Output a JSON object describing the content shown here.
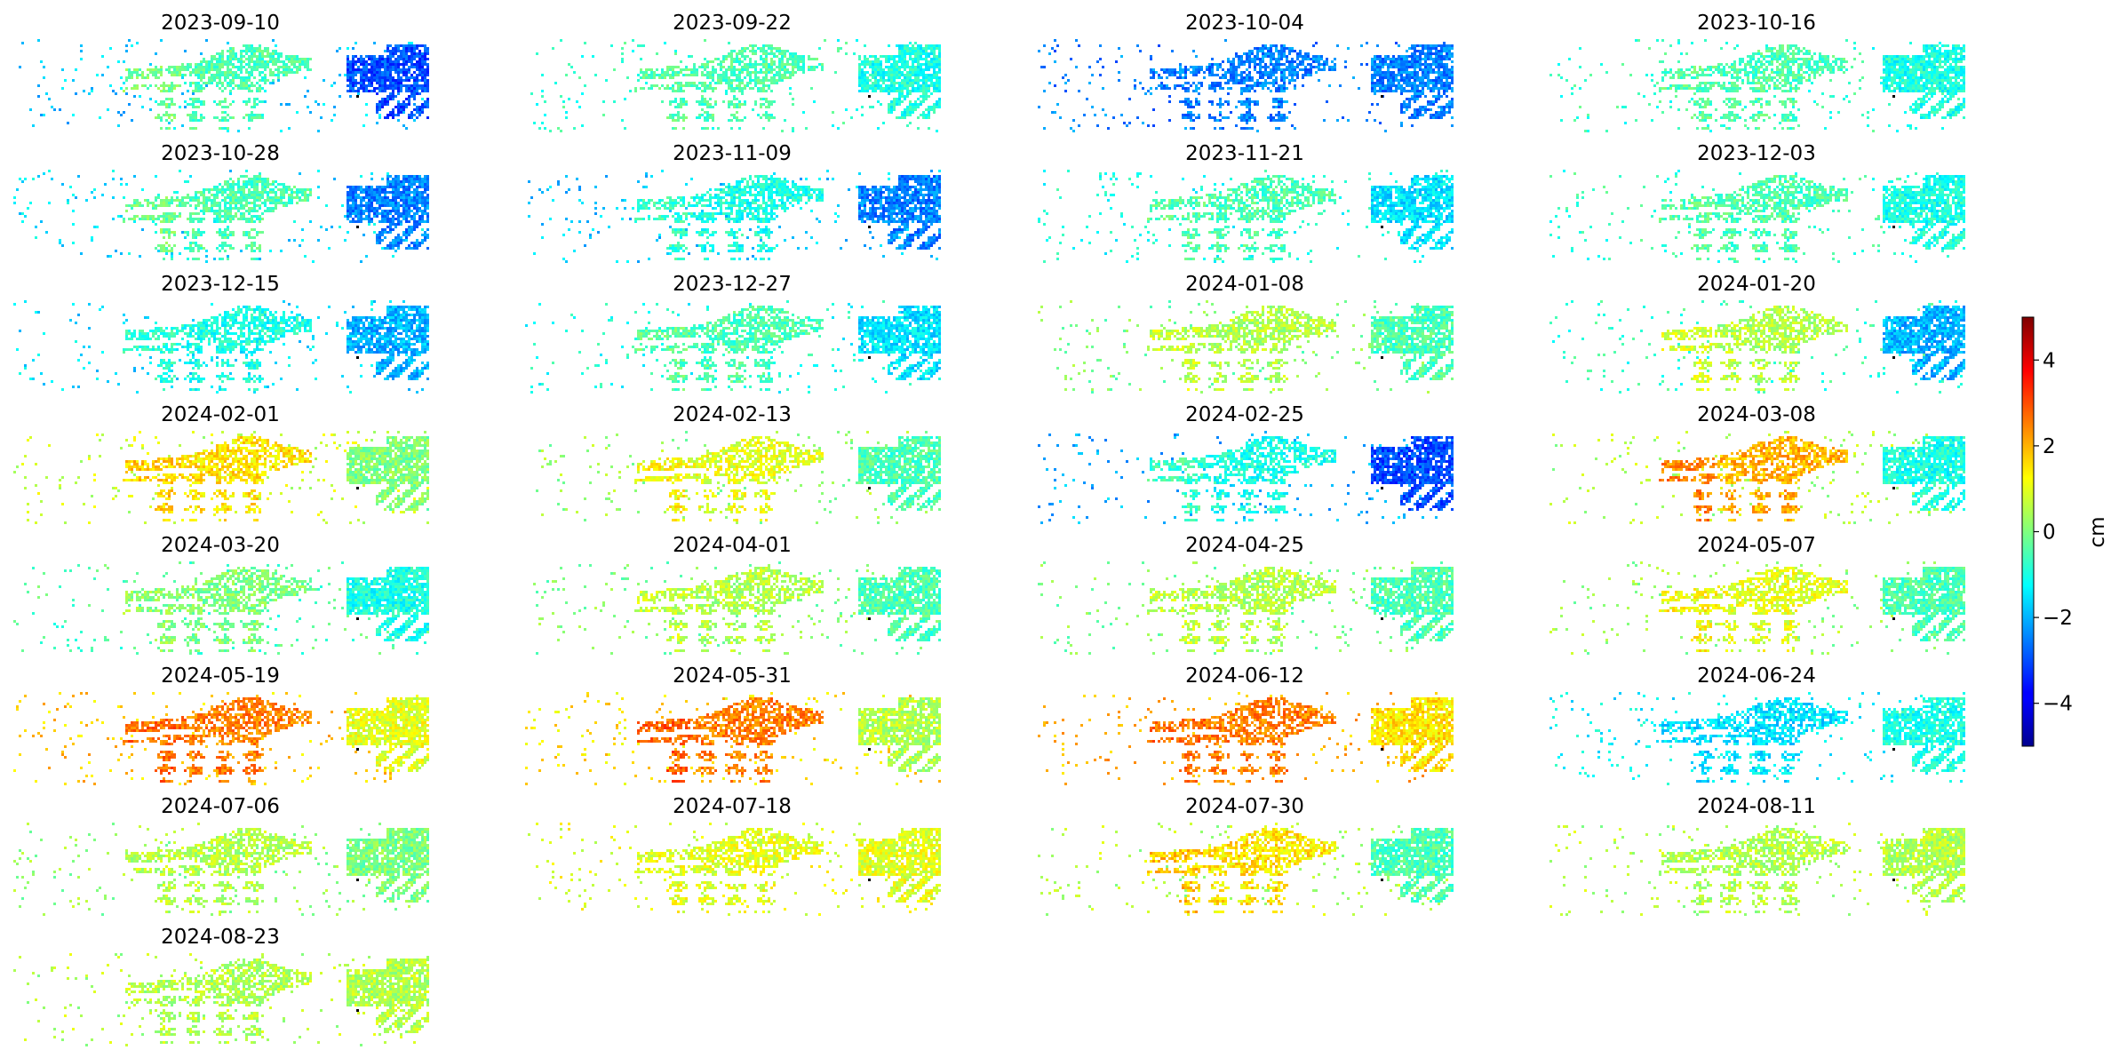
{
  "chart_data": {
    "type": "heatmap",
    "title": "",
    "panels": [
      {
        "date": "2023-09-10",
        "west": -0.5,
        "east": -3.0
      },
      {
        "date": "2023-09-22",
        "west": -0.5,
        "east": -1.0
      },
      {
        "date": "2023-10-04",
        "west": -2.5,
        "east": -2.5
      },
      {
        "date": "2023-10-16",
        "west": -0.5,
        "east": -1.0
      },
      {
        "date": "2023-10-28",
        "west": -0.5,
        "east": -2.5
      },
      {
        "date": "2023-11-09",
        "west": -1.0,
        "east": -2.5
      },
      {
        "date": "2023-11-21",
        "west": -0.5,
        "east": -1.5
      },
      {
        "date": "2023-12-03",
        "west": -0.5,
        "east": -1.0
      },
      {
        "date": "2023-12-15",
        "west": -1.0,
        "east": -2.0
      },
      {
        "date": "2023-12-27",
        "west": -0.5,
        "east": -1.5
      },
      {
        "date": "2024-01-08",
        "west": 0.5,
        "east": -0.5
      },
      {
        "date": "2024-01-20",
        "west": 0.5,
        "east": -2.0
      },
      {
        "date": "2024-02-01",
        "west": 1.5,
        "east": 0.0
      },
      {
        "date": "2024-02-13",
        "west": 1.0,
        "east": -0.5
      },
      {
        "date": "2024-02-25",
        "west": -1.0,
        "east": -3.0
      },
      {
        "date": "2024-03-08",
        "west": 2.0,
        "east": -1.0
      },
      {
        "date": "2024-03-20",
        "west": 0.0,
        "east": -1.0
      },
      {
        "date": "2024-04-01",
        "west": 0.5,
        "east": -0.5
      },
      {
        "date": "2024-04-25",
        "west": 0.5,
        "east": -0.5
      },
      {
        "date": "2024-05-07",
        "west": 1.0,
        "east": -0.5
      },
      {
        "date": "2024-05-19",
        "west": 2.5,
        "east": 1.0
      },
      {
        "date": "2024-05-31",
        "west": 2.5,
        "east": 0.5
      },
      {
        "date": "2024-06-12",
        "west": 2.5,
        "east": 1.5
      },
      {
        "date": "2024-06-24",
        "west": -1.5,
        "east": -1.0
      },
      {
        "date": "2024-07-06",
        "west": 0.5,
        "east": 0.0
      },
      {
        "date": "2024-07-18",
        "west": 1.0,
        "east": 1.0
      },
      {
        "date": "2024-07-30",
        "west": 1.5,
        "east": -0.5
      },
      {
        "date": "2024-08-11",
        "west": 0.5,
        "east": 0.5
      },
      {
        "date": "2024-08-23",
        "west": 0.5,
        "east": 0.5
      }
    ],
    "grid": {
      "rows": 8,
      "cols": 4
    },
    "colorbar": {
      "label": "cm",
      "range": [
        -5,
        5
      ],
      "ticks": [
        4,
        2,
        0,
        -2,
        -4
      ],
      "tick_labels": [
        "4",
        "2",
        "0",
        "−2",
        "−4"
      ],
      "colormap": "jet",
      "placement": "right"
    },
    "reference_point_color": "#000000",
    "axes": "off"
  }
}
